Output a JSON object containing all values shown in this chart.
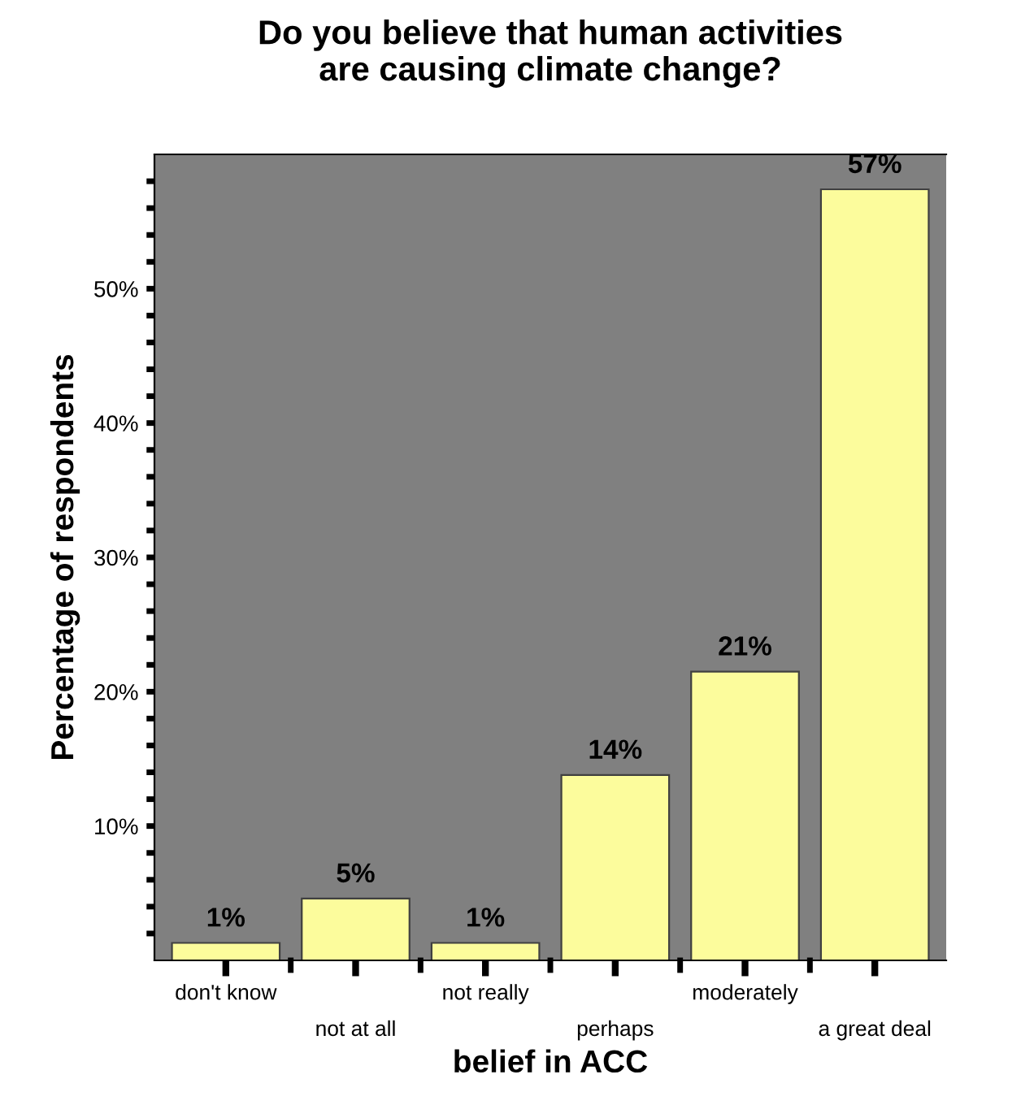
{
  "chart_data": {
    "type": "bar",
    "title": "Do you believe that human activities\nare causing climate change?",
    "xlabel": "belief in ACC",
    "ylabel": "Percentage of respondents",
    "categories": [
      "don't know",
      "not at all",
      "not really",
      "perhaps",
      "moderately",
      "a great deal"
    ],
    "values": [
      1.3,
      4.6,
      1.3,
      13.8,
      21.5,
      57.4
    ],
    "value_labels": [
      "1%",
      "5%",
      "1%",
      "14%",
      "21%",
      "57%"
    ],
    "color": "#fcfc9c",
    "ylim": [
      0,
      60
    ],
    "yticks": [
      {
        "value": 2,
        "label": null
      },
      {
        "value": 4,
        "label": null
      },
      {
        "value": 6,
        "label": null
      },
      {
        "value": 8,
        "label": null
      },
      {
        "value": 10,
        "label": "10%"
      },
      {
        "value": 12,
        "label": null
      },
      {
        "value": 14,
        "label": null
      },
      {
        "value": 16,
        "label": null
      },
      {
        "value": 18,
        "label": null
      },
      {
        "value": 20,
        "label": "20%"
      },
      {
        "value": 22,
        "label": null
      },
      {
        "value": 24,
        "label": null
      },
      {
        "value": 26,
        "label": null
      },
      {
        "value": 28,
        "label": null
      },
      {
        "value": 30,
        "label": "30%"
      },
      {
        "value": 32,
        "label": null
      },
      {
        "value": 34,
        "label": null
      },
      {
        "value": 36,
        "label": null
      },
      {
        "value": 38,
        "label": null
      },
      {
        "value": 40,
        "label": "40%"
      },
      {
        "value": 42,
        "label": null
      },
      {
        "value": 44,
        "label": null
      },
      {
        "value": 46,
        "label": null
      },
      {
        "value": 48,
        "label": null
      },
      {
        "value": 50,
        "label": "50%"
      },
      {
        "value": 52,
        "label": null
      },
      {
        "value": 54,
        "label": null
      },
      {
        "value": 56,
        "label": null
      },
      {
        "value": 58,
        "label": null
      }
    ],
    "grid": false
  }
}
